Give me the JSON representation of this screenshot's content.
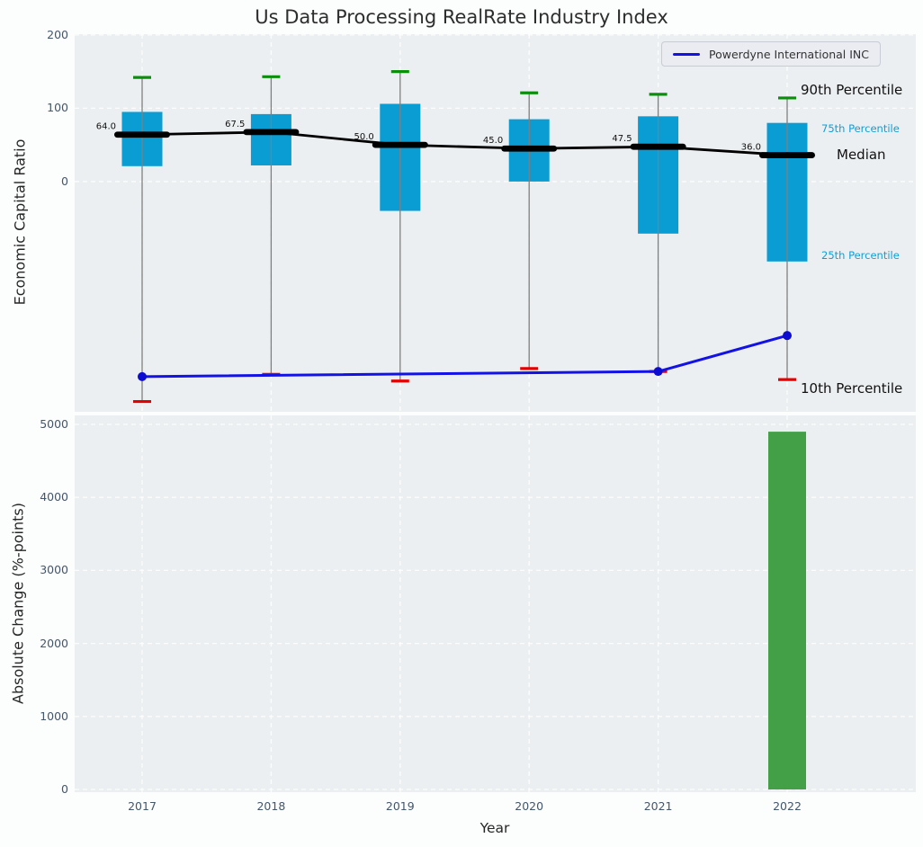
{
  "title": "Us Data Processing RealRate Industry Index",
  "legend": {
    "label": "Powerdyne International INC",
    "line_color": "#1212e8"
  },
  "annotations": {
    "p90": "90th Percentile",
    "p75": "75th Percentile",
    "median": "Median",
    "p25": "25th Percentile",
    "p10": "10th Percentile"
  },
  "colors": {
    "box": "#0a9dd4",
    "cyan_text": "#0f9fd6",
    "green_cap": "#0a8f0a",
    "red_cap": "#e60000",
    "whisker": "#7f7f7f",
    "median_line": "#000000",
    "company_line": "#1212e8",
    "company_marker": "#0c0cd0",
    "bar": "#43a047",
    "panel_bg": "#eceff1",
    "grid": "#ffffff",
    "tick_text": "#44566b"
  },
  "chart_data": [
    {
      "type": "box",
      "title": "Us Data Processing RealRate Industry Index",
      "ylabel": "Economic Capital Ratio",
      "categories": [
        "2017",
        "2018",
        "2019",
        "2020",
        "2021",
        "2022"
      ],
      "yticks": [
        200,
        100,
        0
      ],
      "ylim": [
        -314,
        201
      ],
      "grid": true,
      "series": [
        {
          "name": "90th Percentile",
          "values": [
            142,
            143,
            150,
            121,
            119,
            114
          ]
        },
        {
          "name": "75th Percentile",
          "values": [
            95,
            92,
            106,
            85,
            89,
            80
          ]
        },
        {
          "name": "Median",
          "values": [
            64.0,
            67.5,
            50.0,
            45.0,
            47.5,
            36.0
          ]
        },
        {
          "name": "25th Percentile",
          "values": [
            21,
            22,
            -40,
            0,
            -71,
            -109
          ]
        },
        {
          "name": "10th Percentile",
          "values": [
            -300,
            -263,
            -272,
            -255,
            -259,
            -270
          ]
        }
      ],
      "median_labels": [
        "64.0",
        "67.5",
        "50.0",
        "45.0",
        "47.5",
        "36.0"
      ],
      "company_line": {
        "name": "Powerdyne International INC",
        "points": [
          {
            "x": "2017",
            "y": -266
          },
          {
            "x": "2021",
            "y": -259
          },
          {
            "x": "2022",
            "y": -210
          }
        ]
      },
      "legend_position": "upper right"
    },
    {
      "type": "bar",
      "ylabel": "Absolute Change (%-points)",
      "xlabel": "Year",
      "categories": [
        "2017",
        "2018",
        "2019",
        "2020",
        "2021",
        "2022"
      ],
      "values": [
        0,
        0,
        0,
        0,
        0,
        4900
      ],
      "yticks": [
        0,
        1000,
        2000,
        3000,
        4000,
        5000
      ],
      "ylim": [
        -37,
        5123
      ],
      "grid": true
    }
  ]
}
